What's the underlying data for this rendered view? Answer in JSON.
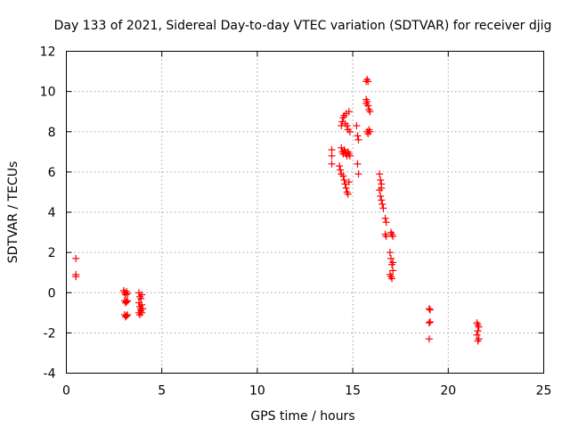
{
  "chart_data": {
    "type": "scatter",
    "title": "Day 133 of 2021, Sidereal Day-to-day VTEC variation (SDTVAR) for receiver djig",
    "xlabel": "GPS time / hours",
    "ylabel": "SDTVAR / TECUs",
    "xlim": [
      0,
      25
    ],
    "ylim": [
      -4,
      12
    ],
    "xticks": [
      0,
      5,
      10,
      15,
      20,
      25
    ],
    "yticks": [
      -4,
      -2,
      0,
      2,
      4,
      6,
      8,
      10,
      12
    ],
    "grid": true,
    "marker": "+",
    "series": [
      {
        "name": "SDTVAR",
        "color": "#ff0000",
        "points": [
          [
            0.5,
            1.7
          ],
          [
            0.5,
            0.9
          ],
          [
            0.5,
            0.8
          ],
          [
            3.0,
            0.1
          ],
          [
            3.05,
            0.0
          ],
          [
            3.1,
            -0.1
          ],
          [
            3.15,
            0.05
          ],
          [
            3.2,
            -0.05
          ],
          [
            3.05,
            -0.4
          ],
          [
            3.1,
            -0.5
          ],
          [
            3.15,
            -0.45
          ],
          [
            3.2,
            -0.4
          ],
          [
            3.05,
            -1.1
          ],
          [
            3.1,
            -1.2
          ],
          [
            3.15,
            -1.15
          ],
          [
            3.2,
            -1.1
          ],
          [
            3.8,
            0.0
          ],
          [
            3.85,
            -0.2
          ],
          [
            3.9,
            -0.3
          ],
          [
            3.95,
            -0.1
          ],
          [
            3.8,
            -0.5
          ],
          [
            3.85,
            -0.7
          ],
          [
            3.9,
            -0.8
          ],
          [
            3.95,
            -0.6
          ],
          [
            3.8,
            -1.0
          ],
          [
            3.85,
            -1.1
          ],
          [
            3.9,
            -0.9
          ],
          [
            3.95,
            -1.0
          ],
          [
            4.0,
            -0.8
          ],
          [
            13.9,
            7.1
          ],
          [
            13.9,
            6.8
          ],
          [
            13.9,
            6.4
          ],
          [
            14.3,
            6.3
          ],
          [
            14.35,
            6.1
          ],
          [
            14.4,
            5.9
          ],
          [
            14.5,
            5.8
          ],
          [
            14.55,
            5.6
          ],
          [
            14.6,
            5.4
          ],
          [
            14.65,
            5.2
          ],
          [
            14.7,
            5.0
          ],
          [
            14.75,
            4.9
          ],
          [
            14.8,
            5.5
          ],
          [
            14.4,
            7.2
          ],
          [
            14.45,
            7.0
          ],
          [
            14.5,
            6.9
          ],
          [
            14.55,
            7.1
          ],
          [
            14.6,
            7.0
          ],
          [
            14.65,
            6.9
          ],
          [
            14.7,
            6.8
          ],
          [
            14.75,
            7.0
          ],
          [
            14.8,
            6.9
          ],
          [
            14.85,
            6.8
          ],
          [
            14.4,
            8.3
          ],
          [
            14.45,
            8.5
          ],
          [
            14.5,
            8.7
          ],
          [
            14.55,
            8.8
          ],
          [
            14.6,
            8.4
          ],
          [
            14.65,
            8.9
          ],
          [
            14.7,
            8.3
          ],
          [
            14.75,
            8.1
          ],
          [
            14.8,
            9.0
          ],
          [
            14.85,
            8.0
          ],
          [
            15.2,
            8.3
          ],
          [
            15.25,
            7.8
          ],
          [
            15.3,
            7.6
          ],
          [
            15.25,
            6.4
          ],
          [
            15.3,
            5.9
          ],
          [
            15.7,
            10.5
          ],
          [
            15.75,
            10.6
          ],
          [
            15.8,
            10.5
          ],
          [
            15.7,
            9.6
          ],
          [
            15.75,
            9.5
          ],
          [
            15.8,
            9.3
          ],
          [
            15.85,
            9.1
          ],
          [
            15.9,
            9.0
          ],
          [
            15.7,
            9.4
          ],
          [
            15.75,
            8.0
          ],
          [
            15.8,
            7.9
          ],
          [
            15.85,
            8.1
          ],
          [
            15.9,
            8.0
          ],
          [
            16.4,
            5.9
          ],
          [
            16.45,
            5.6
          ],
          [
            16.5,
            5.4
          ],
          [
            16.4,
            5.1
          ],
          [
            16.45,
            4.8
          ],
          [
            16.5,
            4.6
          ],
          [
            16.55,
            4.4
          ],
          [
            16.6,
            4.2
          ],
          [
            16.5,
            5.2
          ],
          [
            16.7,
            3.7
          ],
          [
            16.75,
            3.5
          ],
          [
            16.7,
            2.9
          ],
          [
            16.75,
            2.8
          ],
          [
            17.0,
            3.0
          ],
          [
            17.05,
            2.9
          ],
          [
            17.1,
            2.8
          ],
          [
            16.95,
            2.0
          ],
          [
            17.0,
            1.7
          ],
          [
            17.05,
            1.4
          ],
          [
            17.1,
            1.1
          ],
          [
            16.95,
            0.9
          ],
          [
            17.0,
            0.8
          ],
          [
            17.05,
            0.7
          ],
          [
            17.1,
            1.5
          ],
          [
            19.0,
            -0.8
          ],
          [
            19.05,
            -0.85
          ],
          [
            19.0,
            -1.5
          ],
          [
            19.05,
            -1.45
          ],
          [
            19.0,
            -2.3
          ],
          [
            21.5,
            -1.5
          ],
          [
            21.55,
            -1.6
          ],
          [
            21.6,
            -1.7
          ],
          [
            21.55,
            -1.9
          ],
          [
            21.5,
            -2.1
          ],
          [
            21.6,
            -2.3
          ],
          [
            21.55,
            -2.4
          ]
        ]
      }
    ]
  }
}
